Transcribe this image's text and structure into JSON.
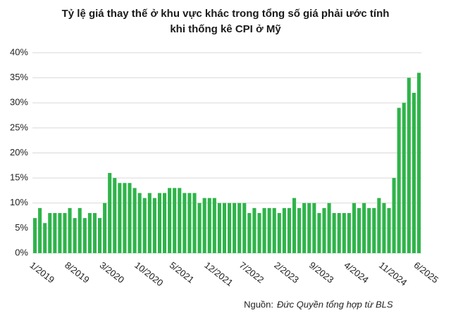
{
  "chart_data": {
    "type": "bar",
    "title": [
      "Tỷ lệ giá thay thế ở khu vực khác trong tổng số giá phải ước tính",
      "khi thống kê CPI ở Mỹ"
    ],
    "categories": [
      "1/2019",
      null,
      null,
      null,
      null,
      null,
      null,
      "8/2019",
      null,
      null,
      null,
      null,
      null,
      null,
      "3/2020",
      null,
      null,
      null,
      null,
      null,
      null,
      "10/2020",
      null,
      null,
      null,
      null,
      null,
      null,
      "5/2021",
      null,
      null,
      null,
      null,
      null,
      null,
      "12/2021",
      null,
      null,
      null,
      null,
      null,
      null,
      "7/2022",
      null,
      null,
      null,
      null,
      null,
      null,
      "2/2023",
      null,
      null,
      null,
      null,
      null,
      null,
      "9/2023",
      null,
      null,
      null,
      null,
      null,
      null,
      "4/2024",
      null,
      null,
      null,
      null,
      null,
      null,
      "11/2024",
      null,
      null,
      null,
      null,
      null,
      null,
      "6/2025"
    ],
    "values": [
      7,
      9,
      6,
      8,
      8,
      8,
      8,
      9,
      7,
      9,
      7,
      8,
      8,
      7,
      10,
      16,
      15,
      14,
      14,
      14,
      13,
      12,
      11,
      12,
      11,
      12,
      12,
      13,
      13,
      13,
      12,
      12,
      12,
      10,
      11,
      11,
      11,
      10,
      10,
      10,
      10,
      10,
      10,
      8,
      9,
      8,
      9,
      9,
      9,
      8,
      9,
      9,
      11,
      9,
      10,
      10,
      10,
      8,
      9,
      10,
      8,
      8,
      8,
      8,
      10,
      9,
      10,
      9,
      9,
      11,
      10,
      9,
      15,
      29,
      30,
      35,
      32,
      36
    ],
    "color": "#2fb44a",
    "ylim": [
      0,
      40
    ],
    "yticks": [
      {
        "value": 0,
        "label": "0%"
      },
      {
        "value": 5,
        "label": "5%"
      },
      {
        "value": 10,
        "label": "10%"
      },
      {
        "value": 15,
        "label": "15%"
      },
      {
        "value": 20,
        "label": "20%"
      },
      {
        "value": 25,
        "label": "25%"
      },
      {
        "value": 30,
        "label": "30%"
      },
      {
        "value": 35,
        "label": "35%"
      },
      {
        "value": 40,
        "label": "40%"
      }
    ],
    "grid": true,
    "source_label": "Nguồn:",
    "source": "Đức Quyền tổng hợp từ BLS"
  }
}
